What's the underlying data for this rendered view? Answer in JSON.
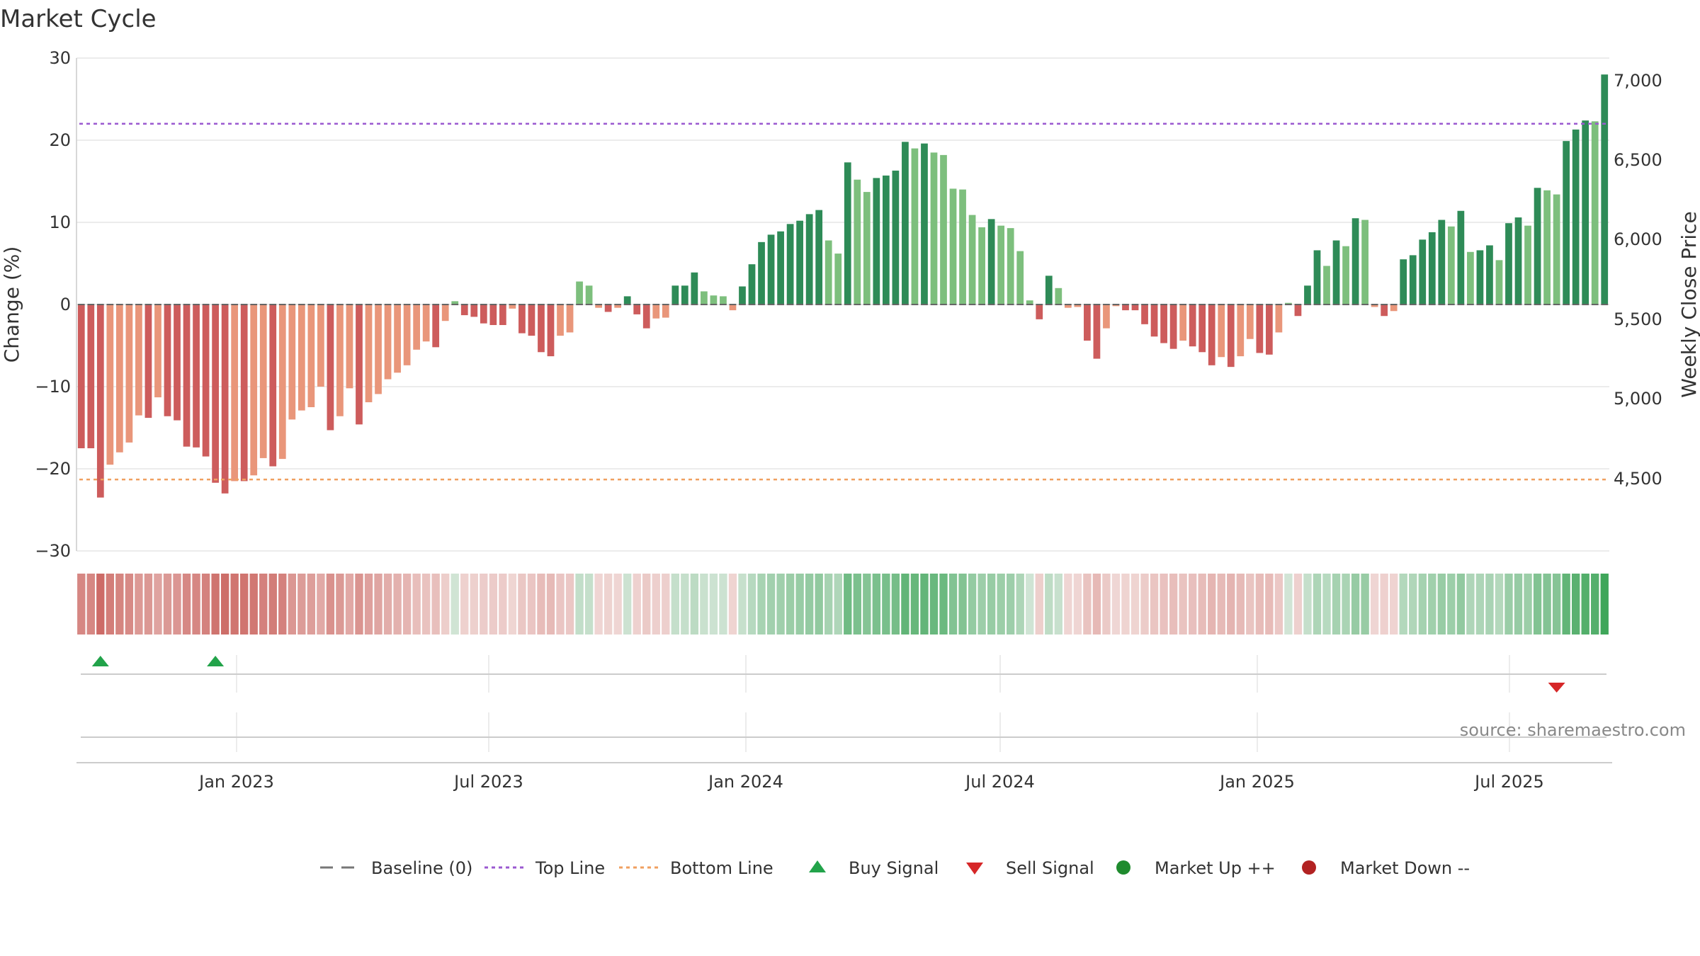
{
  "chart_data": {
    "type": "bar",
    "title": "Market Cycle",
    "ylabel": "Change (%)",
    "y2label": "Weekly Close Price",
    "ylim": [
      -30,
      30
    ],
    "y_ticks": [
      "30",
      "20",
      "10",
      "0",
      "−10",
      "−20",
      "−30"
    ],
    "y2_ticks": [
      "7,000",
      "6,500",
      "6,000",
      "5,500",
      "5,000",
      "4,500"
    ],
    "x_ticks": [
      "Jan 2023",
      "Jul 2023",
      "Jan 2024",
      "Jul 2024",
      "Jan 2025",
      "Jul 2025"
    ],
    "top_line": 22,
    "bottom_line": -21.3,
    "values": [
      -17.5,
      -17.5,
      -23.5,
      -19.5,
      -18,
      -16.8,
      -13.5,
      -13.8,
      -11.3,
      -13.6,
      -14.1,
      -17.3,
      -17.4,
      -18.5,
      -21.7,
      -23,
      -21.5,
      -21.5,
      -20.8,
      -18.7,
      -19.7,
      -18.8,
      -14,
      -12.9,
      -12.5,
      -10,
      -15.3,
      -13.6,
      -10.2,
      -14.6,
      -11.9,
      -10.9,
      -9.1,
      -8.3,
      -7.4,
      -5.5,
      -4.5,
      -5.2,
      -2,
      0.4,
      -1.3,
      -1.5,
      -2.3,
      -2.5,
      -2.5,
      -0.5,
      -3.5,
      -3.8,
      -5.8,
      -6.3,
      -3.8,
      -3.4,
      2.8,
      2.3,
      -0.4,
      -0.9,
      -0.4,
      1,
      -1.2,
      -2.9,
      -1.7,
      -1.6,
      2.3,
      2.3,
      3.9,
      1.6,
      1.1,
      1,
      -0.7,
      2.2,
      4.9,
      7.6,
      8.5,
      8.9,
      9.8,
      10.2,
      11,
      11.5,
      7.8,
      6.2,
      17.3,
      15.2,
      13.7,
      15.4,
      15.7,
      16.3,
      19.8,
      19,
      19.6,
      18.5,
      18.2,
      14.1,
      14,
      10.9,
      9.4,
      10.4,
      9.6,
      9.3,
      6.5,
      0.5,
      -1.8,
      3.5,
      2,
      -0.4,
      -0.3,
      -4.4,
      -6.6,
      -2.9,
      -0.2,
      -0.7,
      -0.7,
      -2.4,
      -3.9,
      -4.7,
      -5.4,
      -4.4,
      -5.1,
      -5.8,
      -7.4,
      -6.4,
      -7.6,
      -6.3,
      -4.2,
      -5.9,
      -6.1,
      -3.4,
      0.2,
      -1.4,
      2.3,
      6.6,
      4.7,
      7.8,
      7.1,
      10.5,
      10.3,
      -0.3,
      -1.4,
      -0.8,
      5.5,
      6,
      7.9,
      8.8,
      10.3,
      9.5,
      11.4,
      6.4,
      6.6,
      7.2,
      5.4,
      9.9,
      10.6,
      9.6,
      14.2,
      13.9,
      13.4,
      19.9,
      21.3,
      22.4,
      22.3,
      28
    ]
  },
  "signals": {
    "buy": [
      2,
      14
    ],
    "sell": [
      154
    ]
  },
  "annotations": {
    "source": "source: sharemaestro.com"
  },
  "legend": [
    {
      "label": "Baseline (0)",
      "kind": "dash",
      "color": "#777777"
    },
    {
      "label": "Top Line",
      "kind": "dot",
      "color": "#9b59d0"
    },
    {
      "label": "Bottom Line",
      "kind": "dot",
      "color": "#f0a060"
    },
    {
      "label": "Buy Signal",
      "kind": "tri-up",
      "color": "#22a34a"
    },
    {
      "label": "Sell Signal",
      "kind": "tri-down",
      "color": "#d62728"
    },
    {
      "label": "Market Up ++",
      "kind": "circle",
      "color": "#1f8b2e"
    },
    {
      "label": "Market Down --",
      "kind": "circle",
      "color": "#b22222"
    }
  ],
  "colors": {
    "up_strong": "#2e8b57",
    "up_light": "#7dbf7d",
    "down_strong": "#cd5c5c",
    "down_light": "#e9967a",
    "top_line": "#9b59d0",
    "bottom_line": "#f0a060",
    "grid": "#e6e6e6"
  }
}
